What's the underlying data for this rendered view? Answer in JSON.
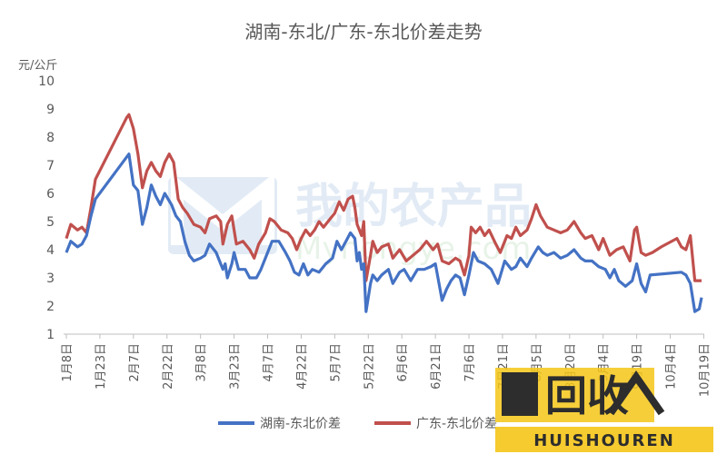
{
  "chart_data": {
    "type": "line",
    "title": "湖南-东北/广东-东北价差走势",
    "unit_label": "元/公斤",
    "ylim": [
      1,
      10
    ],
    "yticks": [
      "1",
      "2",
      "3",
      "4",
      "5",
      "6",
      "7",
      "8",
      "9",
      "10"
    ],
    "grid": false,
    "legend_position": "bottom",
    "x_ticks": [
      "1月8日",
      "1月23日",
      "2月7日",
      "2月22日",
      "3月8日",
      "3月23日",
      "4月7日",
      "4月22日",
      "5月7日",
      "5月22日",
      "6月6日",
      "6月21日",
      "7月6日",
      "7月21日",
      "8月5日",
      "8月20日",
      "9月4日",
      "9月19日",
      "10月4日",
      "10月19日"
    ],
    "x_start": "2018-01-08",
    "x_end": "2018-10-19",
    "series": [
      {
        "name": "湖南-东北价差",
        "color": "#4472c4",
        "points": [
          [
            "2018-01-08",
            3.9
          ],
          [
            "2018-01-10",
            4.3
          ],
          [
            "2018-01-13",
            4.1
          ],
          [
            "2018-01-15",
            4.2
          ],
          [
            "2018-01-17",
            4.5
          ],
          [
            "2018-01-19",
            5.2
          ],
          [
            "2018-01-21",
            5.8
          ],
          [
            "2018-02-05",
            7.4
          ],
          [
            "2018-02-07",
            6.3
          ],
          [
            "2018-02-09",
            6.1
          ],
          [
            "2018-02-11",
            4.9
          ],
          [
            "2018-02-13",
            5.5
          ],
          [
            "2018-02-15",
            6.3
          ],
          [
            "2018-02-17",
            5.9
          ],
          [
            "2018-02-19",
            5.6
          ],
          [
            "2018-02-21",
            6.0
          ],
          [
            "2018-02-24",
            5.6
          ],
          [
            "2018-02-26",
            5.2
          ],
          [
            "2018-02-28",
            5.0
          ],
          [
            "2018-03-02",
            4.3
          ],
          [
            "2018-03-04",
            3.8
          ],
          [
            "2018-03-06",
            3.6
          ],
          [
            "2018-03-09",
            3.7
          ],
          [
            "2018-03-11",
            3.8
          ],
          [
            "2018-03-13",
            4.2
          ],
          [
            "2018-03-16",
            3.9
          ],
          [
            "2018-03-18",
            3.5
          ],
          [
            "2018-03-19",
            3.3
          ],
          [
            "2018-03-20",
            3.5
          ],
          [
            "2018-03-21",
            3.0
          ],
          [
            "2018-03-23",
            3.5
          ],
          [
            "2018-03-24",
            3.9
          ],
          [
            "2018-03-26",
            3.3
          ],
          [
            "2018-03-29",
            3.3
          ],
          [
            "2018-03-31",
            3.0
          ],
          [
            "2018-04-03",
            3.0
          ],
          [
            "2018-04-05",
            3.3
          ],
          [
            "2018-04-08",
            3.9
          ],
          [
            "2018-04-10",
            4.3
          ],
          [
            "2018-04-13",
            4.3
          ],
          [
            "2018-04-16",
            3.9
          ],
          [
            "2018-04-18",
            3.6
          ],
          [
            "2018-04-20",
            3.2
          ],
          [
            "2018-04-22",
            3.1
          ],
          [
            "2018-04-24",
            3.5
          ],
          [
            "2018-04-26",
            3.1
          ],
          [
            "2018-04-28",
            3.3
          ],
          [
            "2018-05-01",
            3.2
          ],
          [
            "2018-05-04",
            3.5
          ],
          [
            "2018-05-07",
            3.7
          ],
          [
            "2018-05-09",
            4.3
          ],
          [
            "2018-05-11",
            4.0
          ],
          [
            "2018-05-13",
            4.3
          ],
          [
            "2018-05-15",
            4.6
          ],
          [
            "2018-05-17",
            4.4
          ],
          [
            "2018-05-18",
            3.6
          ],
          [
            "2018-05-19",
            3.9
          ],
          [
            "2018-05-20",
            3.3
          ],
          [
            "2018-05-21",
            3.5
          ],
          [
            "2018-05-22",
            1.8
          ],
          [
            "2018-05-24",
            2.8
          ],
          [
            "2018-05-25",
            3.1
          ],
          [
            "2018-05-27",
            2.9
          ],
          [
            "2018-05-29",
            3.1
          ],
          [
            "2018-06-01",
            3.3
          ],
          [
            "2018-06-03",
            2.8
          ],
          [
            "2018-06-06",
            3.2
          ],
          [
            "2018-06-08",
            3.3
          ],
          [
            "2018-06-11",
            2.9
          ],
          [
            "2018-06-14",
            3.3
          ],
          [
            "2018-06-17",
            3.3
          ],
          [
            "2018-06-20",
            3.4
          ],
          [
            "2018-06-22",
            3.5
          ],
          [
            "2018-06-25",
            2.2
          ],
          [
            "2018-06-27",
            2.6
          ],
          [
            "2018-06-29",
            2.9
          ],
          [
            "2018-07-01",
            3.1
          ],
          [
            "2018-07-03",
            3.0
          ],
          [
            "2018-07-05",
            2.4
          ],
          [
            "2018-07-07",
            3.1
          ],
          [
            "2018-07-09",
            3.9
          ],
          [
            "2018-07-11",
            3.6
          ],
          [
            "2018-07-14",
            3.5
          ],
          [
            "2018-07-17",
            3.3
          ],
          [
            "2018-07-20",
            2.8
          ],
          [
            "2018-07-23",
            3.6
          ],
          [
            "2018-07-26",
            3.3
          ],
          [
            "2018-07-28",
            3.4
          ],
          [
            "2018-07-30",
            3.7
          ],
          [
            "2018-08-02",
            3.4
          ],
          [
            "2018-08-04",
            3.7
          ],
          [
            "2018-08-07",
            4.1
          ],
          [
            "2018-08-09",
            3.9
          ],
          [
            "2018-08-11",
            3.8
          ],
          [
            "2018-08-14",
            3.9
          ],
          [
            "2018-08-17",
            3.7
          ],
          [
            "2018-08-20",
            3.8
          ],
          [
            "2018-08-23",
            4.0
          ],
          [
            "2018-08-26",
            3.7
          ],
          [
            "2018-08-28",
            3.6
          ],
          [
            "2018-08-31",
            3.6
          ],
          [
            "2018-09-03",
            3.4
          ],
          [
            "2018-09-06",
            3.3
          ],
          [
            "2018-09-08",
            3.0
          ],
          [
            "2018-09-10",
            3.3
          ],
          [
            "2018-09-12",
            2.9
          ],
          [
            "2018-09-15",
            2.7
          ],
          [
            "2018-09-18",
            2.9
          ],
          [
            "2018-09-20",
            3.5
          ],
          [
            "2018-09-22",
            2.8
          ],
          [
            "2018-09-24",
            2.5
          ],
          [
            "2018-09-26",
            3.1
          ],
          [
            "2018-10-10",
            3.2
          ],
          [
            "2018-10-12",
            3.1
          ],
          [
            "2018-10-14",
            2.8
          ],
          [
            "2018-10-16",
            1.8
          ],
          [
            "2018-10-18",
            1.9
          ],
          [
            "2018-10-19",
            2.3
          ]
        ]
      },
      {
        "name": "广东-东北价差",
        "color": "#c0504d",
        "points": [
          [
            "2018-01-08",
            4.4
          ],
          [
            "2018-01-10",
            4.9
          ],
          [
            "2018-01-13",
            4.7
          ],
          [
            "2018-01-15",
            4.8
          ],
          [
            "2018-01-17",
            4.6
          ],
          [
            "2018-01-19",
            5.5
          ],
          [
            "2018-01-21",
            6.5
          ],
          [
            "2018-02-04",
            8.7
          ],
          [
            "2018-02-05",
            8.8
          ],
          [
            "2018-02-07",
            8.3
          ],
          [
            "2018-02-09",
            7.4
          ],
          [
            "2018-02-11",
            6.2
          ],
          [
            "2018-02-13",
            6.8
          ],
          [
            "2018-02-15",
            7.1
          ],
          [
            "2018-02-17",
            6.8
          ],
          [
            "2018-02-19",
            6.6
          ],
          [
            "2018-02-21",
            7.1
          ],
          [
            "2018-02-23",
            7.4
          ],
          [
            "2018-02-25",
            7.1
          ],
          [
            "2018-02-27",
            5.8
          ],
          [
            "2018-03-01",
            5.5
          ],
          [
            "2018-03-03",
            5.3
          ],
          [
            "2018-03-06",
            4.9
          ],
          [
            "2018-03-09",
            4.8
          ],
          [
            "2018-03-11",
            4.6
          ],
          [
            "2018-03-13",
            5.1
          ],
          [
            "2018-03-16",
            5.2
          ],
          [
            "2018-03-18",
            5.0
          ],
          [
            "2018-03-19",
            4.2
          ],
          [
            "2018-03-21",
            4.9
          ],
          [
            "2018-03-23",
            5.2
          ],
          [
            "2018-03-25",
            4.2
          ],
          [
            "2018-03-28",
            4.3
          ],
          [
            "2018-03-31",
            4.0
          ],
          [
            "2018-04-02",
            3.7
          ],
          [
            "2018-04-04",
            4.2
          ],
          [
            "2018-04-07",
            4.6
          ],
          [
            "2018-04-09",
            5.1
          ],
          [
            "2018-04-11",
            5.0
          ],
          [
            "2018-04-14",
            4.7
          ],
          [
            "2018-04-17",
            4.6
          ],
          [
            "2018-04-19",
            4.4
          ],
          [
            "2018-04-21",
            4.0
          ],
          [
            "2018-04-23",
            4.4
          ],
          [
            "2018-04-25",
            4.7
          ],
          [
            "2018-04-27",
            4.5
          ],
          [
            "2018-04-29",
            4.7
          ],
          [
            "2018-05-01",
            5.0
          ],
          [
            "2018-05-03",
            4.8
          ],
          [
            "2018-05-06",
            5.1
          ],
          [
            "2018-05-08",
            5.3
          ],
          [
            "2018-05-10",
            5.7
          ],
          [
            "2018-05-12",
            5.4
          ],
          [
            "2018-05-14",
            5.8
          ],
          [
            "2018-05-16",
            5.9
          ],
          [
            "2018-05-17",
            5.5
          ],
          [
            "2018-05-18",
            4.9
          ],
          [
            "2018-05-20",
            4.5
          ],
          [
            "2018-05-21",
            5.0
          ],
          [
            "2018-05-22",
            2.9
          ],
          [
            "2018-05-24",
            3.8
          ],
          [
            "2018-05-25",
            4.3
          ],
          [
            "2018-05-27",
            3.9
          ],
          [
            "2018-05-29",
            4.1
          ],
          [
            "2018-06-01",
            4.2
          ],
          [
            "2018-06-03",
            3.7
          ],
          [
            "2018-06-06",
            4.0
          ],
          [
            "2018-06-09",
            3.6
          ],
          [
            "2018-06-12",
            3.8
          ],
          [
            "2018-06-15",
            4.0
          ],
          [
            "2018-06-18",
            4.3
          ],
          [
            "2018-06-21",
            4.0
          ],
          [
            "2018-06-23",
            4.2
          ],
          [
            "2018-06-25",
            3.6
          ],
          [
            "2018-06-28",
            3.5
          ],
          [
            "2018-07-01",
            3.7
          ],
          [
            "2018-07-03",
            3.6
          ],
          [
            "2018-07-05",
            3.1
          ],
          [
            "2018-07-07",
            3.8
          ],
          [
            "2018-07-08",
            4.8
          ],
          [
            "2018-07-10",
            4.6
          ],
          [
            "2018-07-12",
            4.8
          ],
          [
            "2018-07-14",
            4.5
          ],
          [
            "2018-07-16",
            4.7
          ],
          [
            "2018-07-19",
            4.2
          ],
          [
            "2018-07-21",
            3.9
          ],
          [
            "2018-07-24",
            4.5
          ],
          [
            "2018-07-26",
            4.4
          ],
          [
            "2018-07-28",
            4.8
          ],
          [
            "2018-07-30",
            4.5
          ],
          [
            "2018-08-02",
            4.7
          ],
          [
            "2018-08-04",
            5.1
          ],
          [
            "2018-08-06",
            5.6
          ],
          [
            "2018-08-08",
            5.2
          ],
          [
            "2018-08-11",
            4.8
          ],
          [
            "2018-08-14",
            4.7
          ],
          [
            "2018-08-17",
            4.6
          ],
          [
            "2018-08-20",
            4.7
          ],
          [
            "2018-08-23",
            5.0
          ],
          [
            "2018-08-26",
            4.6
          ],
          [
            "2018-08-28",
            4.4
          ],
          [
            "2018-08-31",
            4.5
          ],
          [
            "2018-09-03",
            4.0
          ],
          [
            "2018-09-05",
            4.4
          ],
          [
            "2018-09-08",
            3.8
          ],
          [
            "2018-09-11",
            4.0
          ],
          [
            "2018-09-14",
            4.1
          ],
          [
            "2018-09-17",
            3.6
          ],
          [
            "2018-09-19",
            4.7
          ],
          [
            "2018-09-20",
            4.8
          ],
          [
            "2018-09-22",
            3.9
          ],
          [
            "2018-09-24",
            3.8
          ],
          [
            "2018-09-27",
            3.9
          ],
          [
            "2018-10-01",
            4.1
          ],
          [
            "2018-10-08",
            4.4
          ],
          [
            "2018-10-10",
            4.1
          ],
          [
            "2018-10-12",
            4.0
          ],
          [
            "2018-10-14",
            4.5
          ],
          [
            "2018-10-16",
            2.9
          ],
          [
            "2018-10-19",
            2.9
          ]
        ]
      }
    ]
  },
  "watermarks": {
    "site_cn": "我的农产品",
    "site_en": "Mynongye.com",
    "brand_mark": "回收",
    "brand_sub": "HUISHOUREN"
  }
}
